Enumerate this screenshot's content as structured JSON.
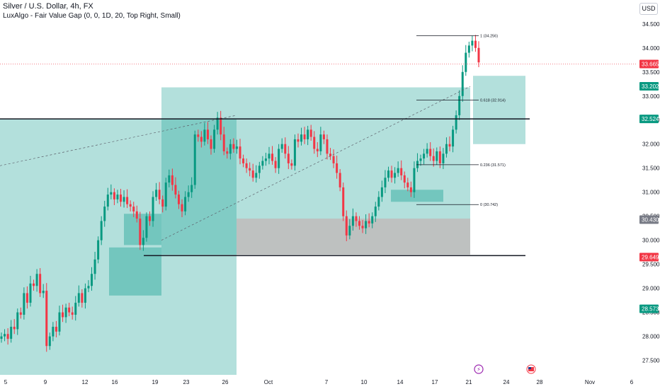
{
  "header": {
    "title": "Silver / U.S. Dollar, 4h, FX",
    "indicator": "LuxAlgo - Fair Value Gap (0, 0, 1D, 20, Top Right, Small)",
    "currency_button": "USD"
  },
  "chart_data": {
    "type": "candlestick",
    "ylim": [
      27.2,
      34.85
    ],
    "y_ticks": [
      "27.500",
      "28.000",
      "28.500",
      "29.000",
      "29.500",
      "30.000",
      "30.500",
      "31.000",
      "31.500",
      "32.000",
      "32.500",
      "33.000",
      "33.500",
      "34.000",
      "34.500"
    ],
    "x_ticks": [
      "5",
      "9",
      "12",
      "16",
      "19",
      "23",
      "26",
      "Oct",
      "7",
      "10",
      "14",
      "17",
      "21",
      "24",
      "28",
      "Nov",
      "6"
    ],
    "price_labels": [
      {
        "text": "33.665",
        "color": "#f23645",
        "value": 33.665
      },
      {
        "text": "33.202",
        "color": "#089981",
        "value": 33.202
      },
      {
        "text": "32.524",
        "color": "#089981",
        "value": 32.524
      },
      {
        "text": "30.430",
        "color": "#787b86",
        "value": 30.43
      },
      {
        "text": "29.649",
        "color": "#f23645",
        "value": 29.649
      },
      {
        "text": "28.573",
        "color": "#089981",
        "value": 28.573
      }
    ],
    "fib_levels": [
      {
        "label": "1 (34.256)",
        "value": 34.256
      },
      {
        "label": "0.618 (32.914)",
        "value": 32.914
      },
      {
        "label": "0.236 (31.571)",
        "value": 31.571
      },
      {
        "label": "0 (30.742)",
        "value": 30.742
      }
    ],
    "horizontal_lines": [
      32.524,
      29.68
    ],
    "fair_value_gaps": [
      {
        "from": "Sep 16",
        "to": "Sep 19",
        "bottom": 29.9,
        "top": 30.55
      },
      {
        "from": "Sep 14",
        "to": "Sep 19",
        "bottom": 28.85,
        "top": 29.85
      },
      {
        "from": "Oct 13",
        "to": "Oct 15",
        "bottom": 30.8,
        "top": 31.05
      }
    ],
    "zones": [
      {
        "kind": "demand",
        "from": "Sep 19",
        "to": "Oct 21",
        "bottom": 29.7,
        "top": 33.18
      },
      {
        "kind": "supply",
        "from": "Sep 27",
        "to": "Oct 21",
        "bottom": 29.7,
        "top": 30.45
      },
      {
        "kind": "demand",
        "from": "Aug 28",
        "to": "Sep 27",
        "bottom": 27.2,
        "top": 32.524
      },
      {
        "kind": "fvg",
        "from": "Oct 22",
        "to": "Oct 25",
        "bottom": 32.0,
        "top": 33.42
      }
    ],
    "closes": [
      28.0,
      28.05,
      27.95,
      28.2,
      28.15,
      28.5,
      28.45,
      28.9,
      28.7,
      29.1,
      29.05,
      29.3,
      28.9,
      28.95,
      27.8,
      28.0,
      28.2,
      28.1,
      28.5,
      28.4,
      28.6,
      28.5,
      28.45,
      28.7,
      28.9,
      28.7,
      29.0,
      29.05,
      29.3,
      29.6,
      30.0,
      30.4,
      30.7,
      30.95,
      31.0,
      30.85,
      30.95,
      30.8,
      30.9,
      30.75,
      30.7,
      30.6,
      30.45,
      29.9,
      30.05,
      30.5,
      30.4,
      30.9,
      31.05,
      30.85,
      30.7,
      31.2,
      31.35,
      31.15,
      30.95,
      30.75,
      30.6,
      30.9,
      31.0,
      31.15,
      32.2,
      32.15,
      32.05,
      32.3,
      32.1,
      31.9,
      32.3,
      32.55,
      32.2,
      31.85,
      31.8,
      32.0,
      31.9,
      31.95,
      31.7,
      31.6,
      31.5,
      31.45,
      31.3,
      31.4,
      31.55,
      31.65,
      31.7,
      31.8,
      31.65,
      31.5,
      31.9,
      32.0,
      31.8,
      31.6,
      31.55,
      32.1,
      32.05,
      32.2,
      32.1,
      32.3,
      32.15,
      31.9,
      31.85,
      32.2,
      32.1,
      31.8,
      31.75,
      31.6,
      31.4,
      31.1,
      30.5,
      30.1,
      30.3,
      30.5,
      30.4,
      30.3,
      30.25,
      30.4,
      30.35,
      30.5,
      30.7,
      30.9,
      31.1,
      31.3,
      31.45,
      31.3,
      31.4,
      31.5,
      31.35,
      31.2,
      31.1,
      31.0,
      31.5,
      31.65,
      31.7,
      31.8,
      31.9,
      31.75,
      31.65,
      31.85,
      31.6,
      31.8,
      32.0,
      31.95,
      32.3,
      32.6,
      33.0,
      33.5,
      33.9,
      34.05,
      34.15,
      34.0,
      33.7
    ]
  }
}
